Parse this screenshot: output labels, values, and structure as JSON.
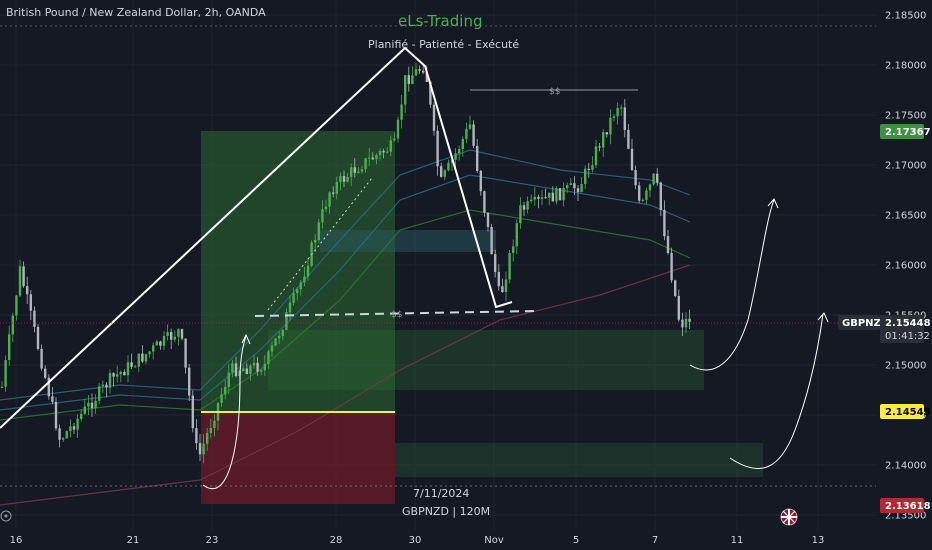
{
  "header": {
    "symbol_title": "British Pound / New Zealand Dollar, 2h, OANDA",
    "brand": "eLs-Trading",
    "tagline": "Planifié - Patienté - Exécuté"
  },
  "watermark": {
    "date": "7/11/2024",
    "symbol_tf": "GBPNZD | 120M"
  },
  "price_tags": {
    "symbol": "GBPNZD",
    "current_price": "2.15448",
    "countdown": "01:41:32",
    "tp_price": "2.17367",
    "entry_price": "2.14545",
    "sl_price": "2.13618"
  },
  "liquidity_labels": {
    "upper": "$$",
    "lower": "$$"
  },
  "colors": {
    "background": "#151924",
    "bull": "#4caf50",
    "bear": "#b2b5be",
    "profit_zone": "#2e7d32",
    "loss_zone": "#8b1a2b",
    "entry_line": "#ffeb3b",
    "tp_tag": "#3d9140",
    "entry_tag": "#ffeb3b",
    "sl_tag": "#b22833"
  },
  "icons": {
    "flag": "uk-flag-icon",
    "settings": "target-icon"
  },
  "chart_data": {
    "type": "candlestick",
    "symbol": "GBPNZD",
    "timeframe": "2h",
    "ylim": [
      2.1335,
      2.1865
    ],
    "y_ticks": [
      2.135,
      2.14,
      2.145,
      2.15,
      2.155,
      2.16,
      2.165,
      2.17,
      2.175,
      2.18,
      2.185
    ],
    "x_ticks": [
      "16",
      "21",
      "23",
      "28",
      "30",
      "Nov",
      "5",
      "7",
      "11",
      "13"
    ],
    "position": {
      "entry": 2.14545,
      "take_profit": 2.17367,
      "stop_loss": 2.13618,
      "start_date": "Oct 23",
      "end_date": "Oct 29"
    },
    "projected_path": [
      {
        "date": "Nov 8",
        "price": 2.15
      },
      {
        "date": "Nov 9",
        "price": 2.1525
      },
      {
        "date": "Nov 10",
        "price": 2.1665
      }
    ],
    "projected_path_2": [
      {
        "date": "Nov 11",
        "price": 2.141
      },
      {
        "date": "Nov 12",
        "price": 2.141
      },
      {
        "date": "Nov 13",
        "price": 2.1548
      }
    ]
  }
}
